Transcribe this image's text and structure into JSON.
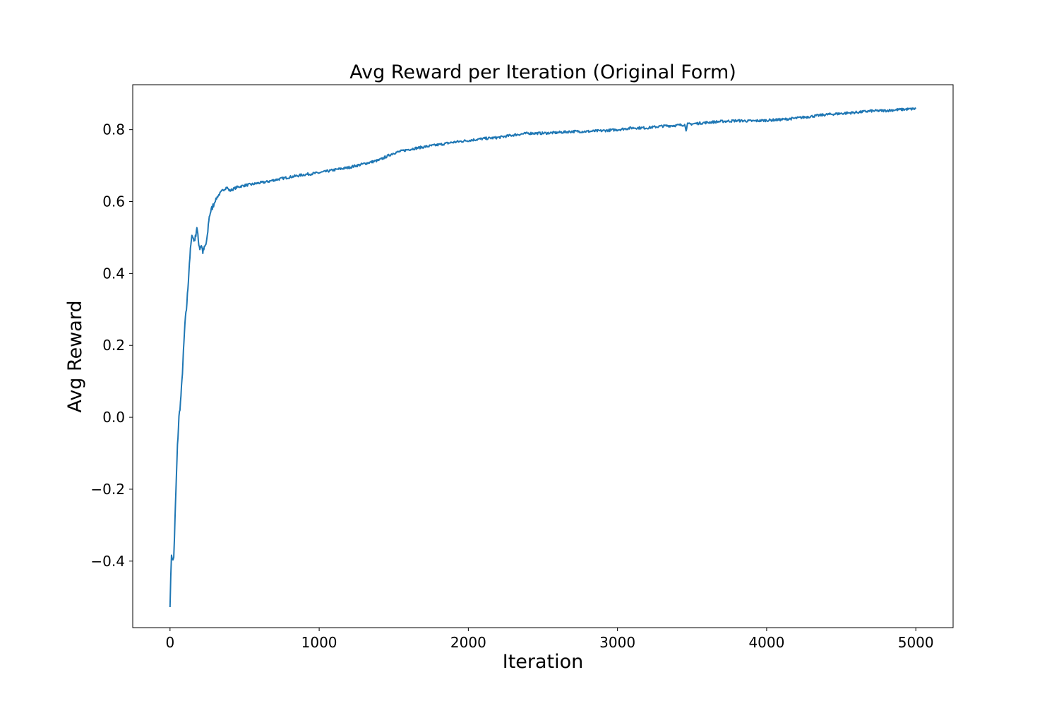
{
  "chart_data": {
    "type": "line",
    "title": "Avg Reward per Iteration (Original Form)",
    "xlabel": "Iteration",
    "ylabel": "Avg Reward",
    "xlim": [
      -250,
      5250
    ],
    "ylim": [
      -0.585,
      0.925
    ],
    "xticks": [
      {
        "value": 0,
        "label": "0"
      },
      {
        "value": 1000,
        "label": "1000"
      },
      {
        "value": 2000,
        "label": "2000"
      },
      {
        "value": 3000,
        "label": "3000"
      },
      {
        "value": 4000,
        "label": "4000"
      },
      {
        "value": 5000,
        "label": "5000"
      }
    ],
    "yticks": [
      {
        "value": -0.4,
        "label": "−0.4"
      },
      {
        "value": -0.2,
        "label": "−0.2"
      },
      {
        "value": 0.0,
        "label": "0.0"
      },
      {
        "value": 0.2,
        "label": "0.2"
      },
      {
        "value": 0.4,
        "label": "0.4"
      },
      {
        "value": 0.6,
        "label": "0.6"
      },
      {
        "value": 0.8,
        "label": "0.8"
      }
    ],
    "grid": false,
    "legend": "none",
    "series": [
      {
        "color": "#1f77b4",
        "x": [
          0,
          5,
          10,
          15,
          20,
          25,
          30,
          40,
          50,
          60,
          70,
          80,
          90,
          100,
          110,
          120,
          130,
          140,
          150,
          160,
          170,
          180,
          190,
          200,
          210,
          220,
          230,
          240,
          250,
          260,
          270,
          280,
          300,
          320,
          350,
          380,
          400,
          450,
          500,
          550,
          600,
          650,
          700,
          800,
          900,
          1000,
          1100,
          1200,
          1300,
          1400,
          1450,
          1500,
          1600,
          1700,
          1800,
          1900,
          2000,
          2100,
          2200,
          2300,
          2400,
          2500,
          2600,
          2700,
          2800,
          2900,
          3000,
          3100,
          3200,
          3300,
          3400,
          3450,
          3460,
          3470,
          3500,
          3600,
          3700,
          3800,
          3900,
          4000,
          4100,
          4200,
          4300,
          4400,
          4500,
          4600,
          4700,
          4800,
          4900,
          5000
        ],
        "y": [
          -0.52,
          -0.45,
          -0.38,
          -0.39,
          -0.4,
          -0.39,
          -0.33,
          -0.2,
          -0.08,
          0.0,
          0.04,
          0.1,
          0.18,
          0.26,
          0.3,
          0.36,
          0.43,
          0.48,
          0.51,
          0.49,
          0.5,
          0.53,
          0.49,
          0.47,
          0.48,
          0.46,
          0.47,
          0.48,
          0.5,
          0.55,
          0.57,
          0.58,
          0.6,
          0.615,
          0.63,
          0.64,
          0.63,
          0.64,
          0.645,
          0.648,
          0.652,
          0.655,
          0.66,
          0.668,
          0.675,
          0.68,
          0.688,
          0.695,
          0.705,
          0.715,
          0.725,
          0.735,
          0.745,
          0.752,
          0.758,
          0.765,
          0.77,
          0.775,
          0.778,
          0.785,
          0.79,
          0.79,
          0.792,
          0.795,
          0.795,
          0.797,
          0.8,
          0.805,
          0.805,
          0.81,
          0.812,
          0.814,
          0.8,
          0.815,
          0.816,
          0.82,
          0.823,
          0.825,
          0.824,
          0.826,
          0.828,
          0.832,
          0.837,
          0.842,
          0.845,
          0.848,
          0.852,
          0.853,
          0.856,
          0.858
        ]
      }
    ]
  }
}
